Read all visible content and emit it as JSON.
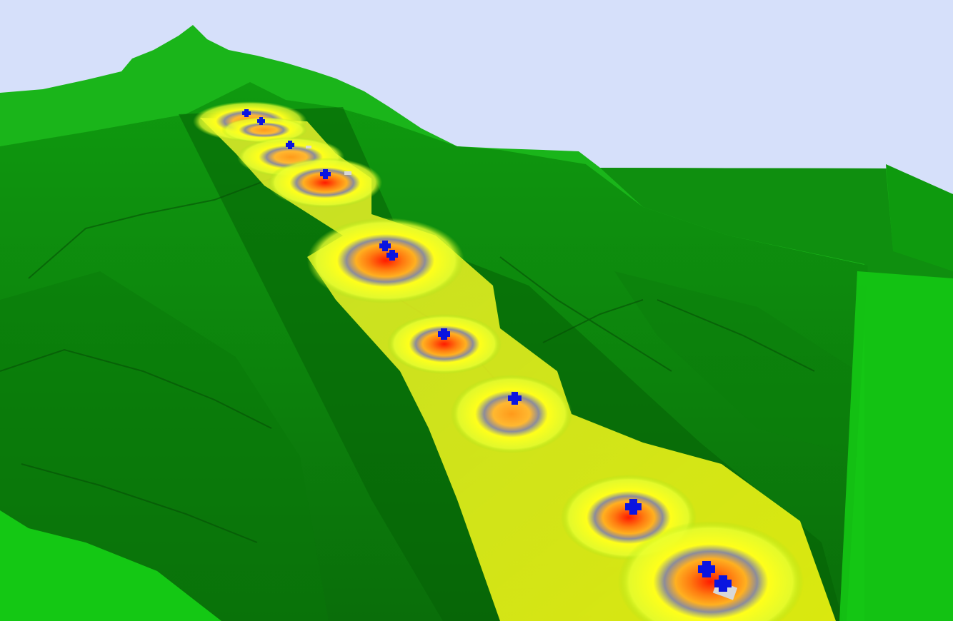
{
  "scene": {
    "kind": "3d-terrain-hotspot-view",
    "colors": {
      "sky": "#d6e0fa",
      "terrain_light": "#14c814",
      "terrain_mid": "#0c8a0c",
      "terrain_dark": "#055605",
      "heat_low": "#ffff1a",
      "heat_ring": "#8c8c9a",
      "heat_mid": "#ff9a1a",
      "heat_high": "#ff1a00",
      "marker": "#0a14e0"
    },
    "markers_visible": 12,
    "hotspots_visible": 9,
    "legend_visible": false,
    "text_visible": false
  }
}
